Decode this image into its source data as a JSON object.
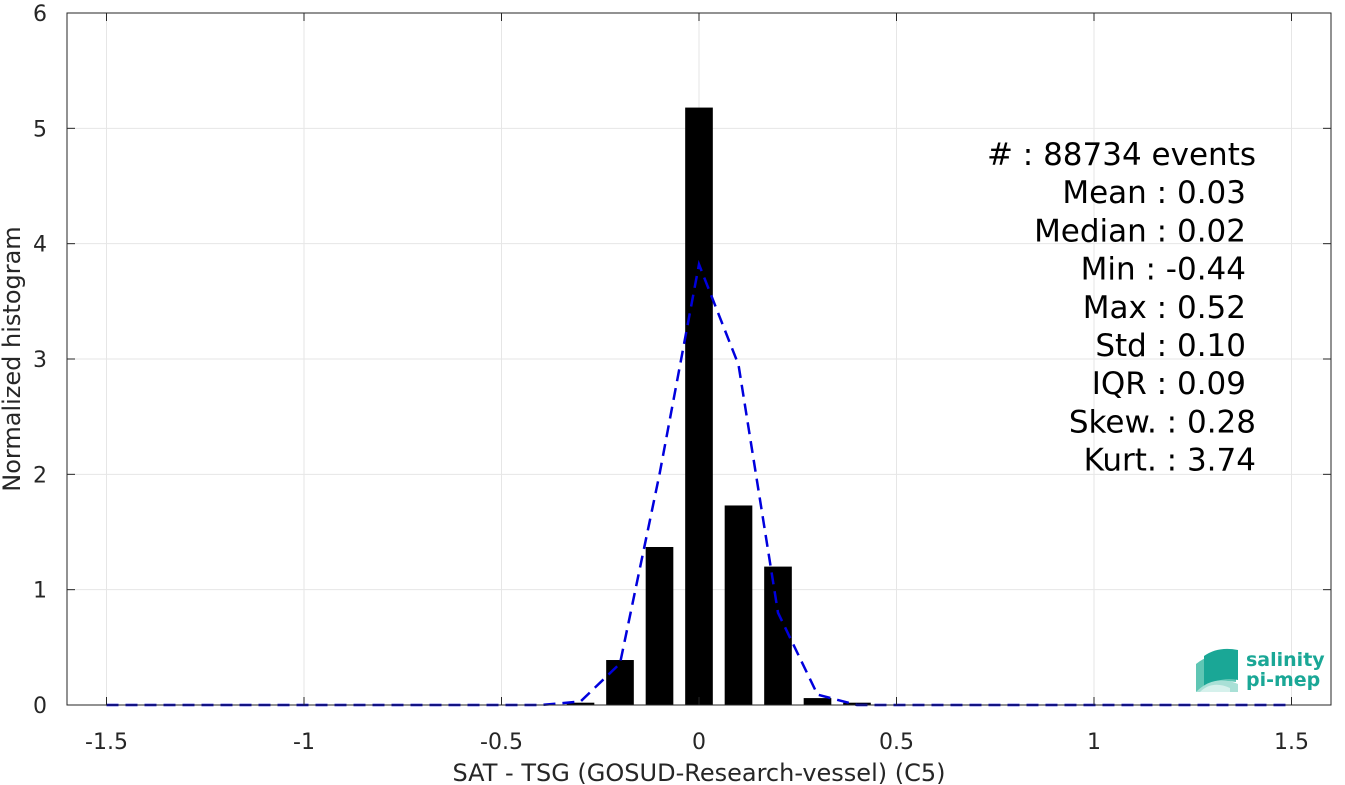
{
  "chart_data": {
    "type": "bar",
    "xlabel": "SAT - TSG (GOSUD-Research-vessel) (C5)",
    "ylabel": "Normalized histogram",
    "xlim": [
      -1.6,
      1.6
    ],
    "ylim": [
      0,
      6
    ],
    "x_ticks": [
      -1.5,
      -1,
      -0.5,
      0,
      0.5,
      1,
      1.5
    ],
    "x_tick_labels": [
      "-1.5",
      "-1",
      "-0.5",
      "0",
      "0.5",
      "1",
      "1.5"
    ],
    "y_ticks": [
      0,
      1,
      2,
      3,
      4,
      5,
      6
    ],
    "y_tick_labels": [
      "0",
      "1",
      "2",
      "3",
      "4",
      "5",
      "6"
    ],
    "grid": true,
    "bar_width": 0.07,
    "bars": {
      "x": [
        -0.3,
        -0.2,
        -0.1,
        0.0,
        0.1,
        0.2,
        0.3,
        0.4
      ],
      "values": [
        0.02,
        0.39,
        1.37,
        5.18,
        1.73,
        1.2,
        0.06,
        0.02
      ],
      "color": "#000000"
    },
    "fit_curve": {
      "style": "dashed",
      "color": "#0000dd",
      "x": [
        -1.5,
        -1.4,
        -1.3,
        -1.2,
        -1.1,
        -1.0,
        -0.9,
        -0.8,
        -0.7,
        -0.6,
        -0.5,
        -0.4,
        -0.3,
        -0.2,
        -0.1,
        0.0,
        0.1,
        0.2,
        0.3,
        0.4,
        0.5,
        0.6,
        0.7,
        0.8,
        0.9,
        1.0,
        1.1,
        1.2,
        1.3,
        1.4,
        1.5
      ],
      "y": [
        0,
        0,
        0,
        0,
        0,
        0,
        0,
        0,
        0,
        0,
        0,
        0.0,
        0.03,
        0.36,
        2.0,
        3.82,
        2.95,
        0.8,
        0.09,
        0.0,
        0,
        0,
        0,
        0,
        0,
        0,
        0,
        0,
        0,
        0,
        0
      ]
    },
    "stats": [
      "#  : 88734 events",
      "Mean : 0.03",
      "Median : 0.02",
      "Min : -0.44",
      "Max : 0.52",
      "Std : 0.10",
      "IQR : 0.09",
      "Skew. : 0.28",
      "Kurt. : 3.74"
    ]
  },
  "logo": {
    "line1": "salinity",
    "line2": "pi-mep",
    "color": "#1aa796"
  }
}
